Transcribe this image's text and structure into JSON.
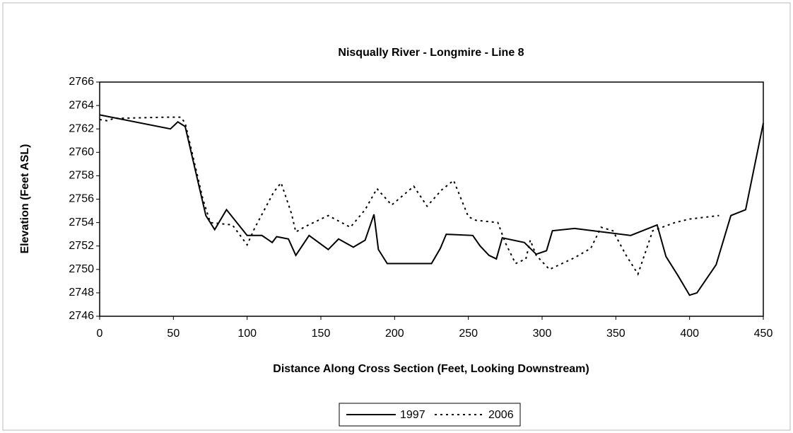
{
  "chart_data": {
    "type": "line",
    "title": "Nisqually River - Longmire - Line 8",
    "x_label": "Distance Along Cross Section (Feet, Looking Downstream)",
    "y_label": "Elevation (Feet ASL)",
    "xlim": [
      0,
      450
    ],
    "xticks": [
      0,
      50,
      100,
      150,
      200,
      250,
      300,
      350,
      400,
      450
    ],
    "ylim": [
      2746,
      2766
    ],
    "yticks": [
      2746,
      2748,
      2750,
      2752,
      2754,
      2756,
      2758,
      2760,
      2762,
      2764,
      2766
    ],
    "legend": "bottom",
    "series": [
      {
        "name": "1997",
        "color": "#000000",
        "dash": "solid",
        "x": [
          0,
          48,
          53,
          58,
          72,
          78,
          86,
          100,
          110,
          117,
          120,
          128,
          133,
          142,
          155,
          162,
          172,
          180,
          186,
          189,
          195,
          200,
          225,
          231,
          235,
          253,
          258,
          264,
          269,
          273,
          288,
          296,
          303,
          307,
          322,
          360,
          378,
          384,
          392,
          400,
          405,
          418,
          428,
          438,
          450
        ],
        "values": [
          2763.2,
          2762,
          2762.6,
          2762.2,
          2754.6,
          2753.4,
          2755.1,
          2752.9,
          2752.9,
          2752.3,
          2752.8,
          2752.6,
          2751.2,
          2752.9,
          2751.7,
          2752.6,
          2751.9,
          2752.5,
          2754.7,
          2751.7,
          2750.5,
          2750.5,
          2750.5,
          2751.8,
          2753,
          2752.9,
          2752,
          2751.2,
          2750.9,
          2752.7,
          2752.3,
          2751.3,
          2751.6,
          2753.3,
          2753.5,
          2752.9,
          2753.8,
          2751.1,
          2749.5,
          2747.8,
          2748,
          2750.4,
          2754.6,
          2755.1,
          2762.5
        ]
      },
      {
        "name": "2006",
        "color": "#000000",
        "dash": "dotted",
        "x": [
          0,
          5,
          10,
          45,
          55,
          58,
          70,
          75,
          90,
          100,
          105,
          118,
          123,
          130,
          133,
          140,
          155,
          170,
          180,
          188,
          198,
          213,
          222,
          232,
          240,
          250,
          255,
          270,
          275,
          282,
          289,
          292,
          296,
          305,
          322,
          333,
          340,
          348,
          357,
          365,
          375,
          390,
          400,
          420
        ],
        "values": [
          2762.8,
          2762.7,
          2762.9,
          2763,
          2763,
          2762.5,
          2756,
          2754,
          2753.8,
          2752.1,
          2753.5,
          2756.6,
          2757.4,
          2754.8,
          2753.2,
          2753.7,
          2754.6,
          2753.6,
          2755.1,
          2756.9,
          2755.5,
          2757.1,
          2755.4,
          2756.8,
          2757.6,
          2754.5,
          2754.2,
          2754,
          2752.3,
          2750.5,
          2750.9,
          2752.5,
          2751.2,
          2750,
          2751,
          2751.8,
          2753.6,
          2753.3,
          2751.2,
          2749.6,
          2753.3,
          2754,
          2754.3,
          2754.6
        ]
      }
    ]
  }
}
